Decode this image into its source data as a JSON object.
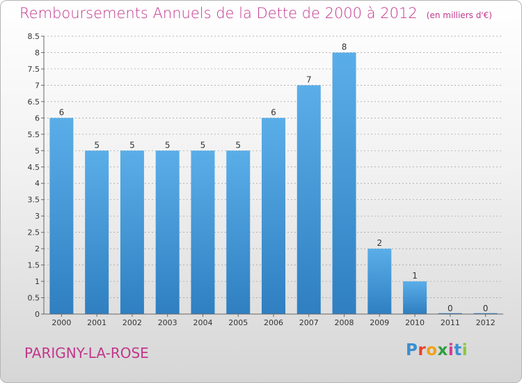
{
  "title": "Remboursements Annuels de la Dette de 2000 à 2012",
  "unit_note": "(en milliers d'€)",
  "commune": "PARIGNY-LA-ROSE",
  "logo": {
    "letters": [
      "P",
      "r",
      "o",
      "x",
      "i",
      "t",
      "i"
    ],
    "colors": [
      "#3a8fd1",
      "#e5432b",
      "#f0a21a",
      "#2f9e3f",
      "#d23a8e",
      "#3a8fd1",
      "#8bc53f"
    ]
  },
  "colors": {
    "title": "#c2378c",
    "bar_top": "#5aaee8",
    "bar_bottom": "#2f7fc1",
    "grid": "#9a9a9a"
  },
  "chart_data": {
    "type": "bar",
    "title": "Remboursements Annuels de la Dette de 2000 à 2012",
    "categories": [
      "2000",
      "2001",
      "2002",
      "2003",
      "2004",
      "2005",
      "2006",
      "2007",
      "2008",
      "2009",
      "2010",
      "2011",
      "2012"
    ],
    "values": [
      6,
      5,
      5,
      5,
      5,
      5,
      6,
      7,
      8,
      2,
      1,
      0,
      0
    ],
    "yticks": [
      "0",
      "0.5",
      "1",
      "1.5",
      "2",
      "2.5",
      "3",
      "3.5",
      "4",
      "4.5",
      "5",
      "5.5",
      "6",
      "6.5",
      "7",
      "7.5",
      "8",
      "8.5"
    ],
    "ylim": [
      0,
      8.5
    ],
    "grid": "horizontal dashed"
  }
}
